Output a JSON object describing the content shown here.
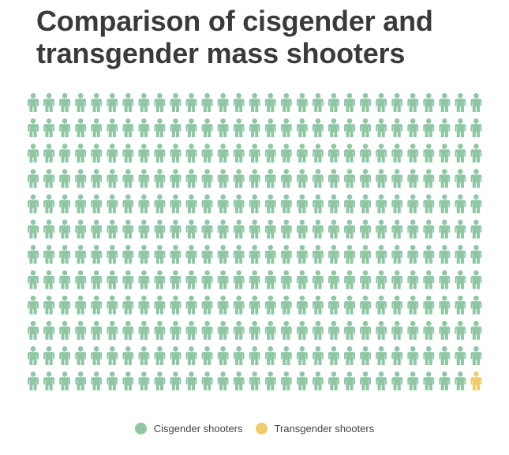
{
  "title": "Comparison of cisgender and transgender mass shooters",
  "chart_data": {
    "type": "pictogram",
    "grid": {
      "rows": 12,
      "columns": 29
    },
    "series": [
      {
        "name": "Cisgender shooters",
        "count": 347,
        "color": "#8fc7a4"
      },
      {
        "name": "Transgender shooters",
        "count": 1,
        "color": "#f0cb6a"
      }
    ],
    "legend_position": "bottom-center"
  }
}
